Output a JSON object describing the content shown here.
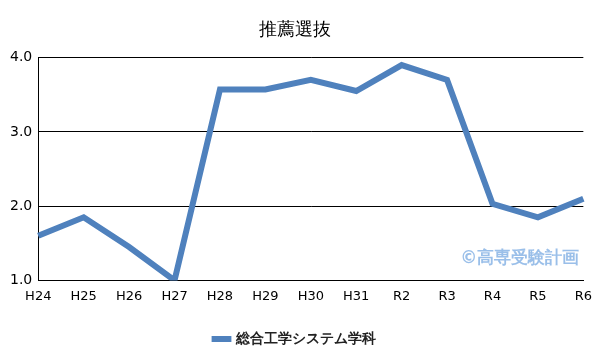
{
  "chart_data": {
    "type": "line",
    "title": "推薦選抜",
    "categories": [
      "H24",
      "H25",
      "H26",
      "H27",
      "H28",
      "H29",
      "H30",
      "H31",
      "R2",
      "R3",
      "R4",
      "R5",
      "R6"
    ],
    "series": [
      {
        "name": "総合工学システム学科",
        "color": "#4f81bd",
        "values": [
          1.6,
          1.85,
          1.45,
          1.0,
          3.57,
          3.57,
          3.7,
          3.55,
          3.9,
          3.7,
          2.03,
          1.85,
          2.1
        ]
      }
    ],
    "ylim": [
      1,
      4
    ],
    "yticks": [
      {
        "value": 1,
        "label": "1.0"
      },
      {
        "value": 2,
        "label": "2.0"
      },
      {
        "value": 3,
        "label": "3.0"
      },
      {
        "value": 4,
        "label": "4.0"
      }
    ],
    "grid": true,
    "legend": "bottom",
    "marker": "none",
    "annotation": "©高専受験計画"
  }
}
